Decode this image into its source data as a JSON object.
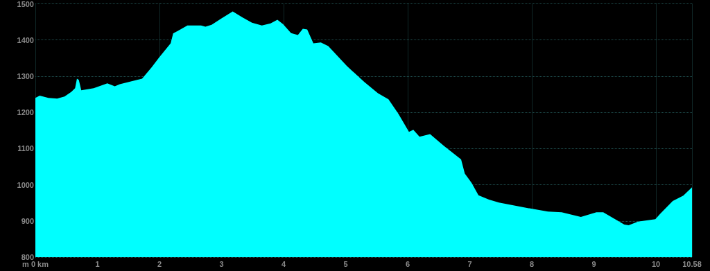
{
  "chart_data": {
    "type": "area",
    "marker": "none",
    "grid": true,
    "xlim": [
      0,
      10.58
    ],
    "xticks": [
      {
        "value": 0,
        "label": "m 0 km"
      },
      1,
      2,
      3,
      4,
      5,
      6,
      7,
      8,
      9,
      10,
      {
        "value": 10.58,
        "label": "10.58"
      }
    ],
    "ylim": [
      800,
      1500
    ],
    "yticks": [
      800,
      900,
      1000,
      1100,
      1200,
      1300,
      1400,
      1500
    ],
    "series": [
      {
        "color": "#00ffff",
        "x": [
          0,
          0.07,
          0.21,
          0.35,
          0.47,
          0.58,
          0.64,
          0.67,
          0.7,
          0.74,
          0.94,
          1.16,
          1.28,
          1.36,
          1.55,
          1.72,
          1.87,
          2.0,
          2.18,
          2.22,
          2.45,
          2.67,
          2.74,
          2.84,
          3.0,
          3.18,
          3.34,
          3.49,
          3.65,
          3.79,
          3.9,
          3.99,
          4.12,
          4.23,
          4.31,
          4.38,
          4.48,
          4.6,
          4.72,
          5.02,
          5.3,
          5.52,
          5.69,
          5.85,
          6.02,
          6.09,
          6.19,
          6.36,
          6.58,
          6.86,
          6.92,
          7.03,
          7.14,
          7.31,
          7.47,
          7.92,
          8.26,
          8.48,
          8.79,
          9.04,
          9.15,
          9.49,
          9.56,
          9.71,
          9.99,
          10.07,
          10.27,
          10.44,
          10.58
        ],
        "values": [
          1240,
          1246,
          1240,
          1238,
          1244,
          1257,
          1267,
          1293,
          1290,
          1261,
          1267,
          1280,
          1272,
          1278,
          1286,
          1293,
          1324,
          1353,
          1391,
          1418,
          1440,
          1440,
          1437,
          1442,
          1460,
          1479,
          1462,
          1448,
          1440,
          1446,
          1456,
          1444,
          1419,
          1414,
          1431,
          1429,
          1391,
          1393,
          1383,
          1328,
          1284,
          1253,
          1236,
          1196,
          1146,
          1152,
          1133,
          1140,
          1108,
          1070,
          1031,
          1005,
          971,
          959,
          951,
          936,
          926,
          924,
          911,
          924,
          924,
          890,
          888,
          898,
          905,
          920,
          955,
          970,
          993
        ]
      }
    ]
  }
}
